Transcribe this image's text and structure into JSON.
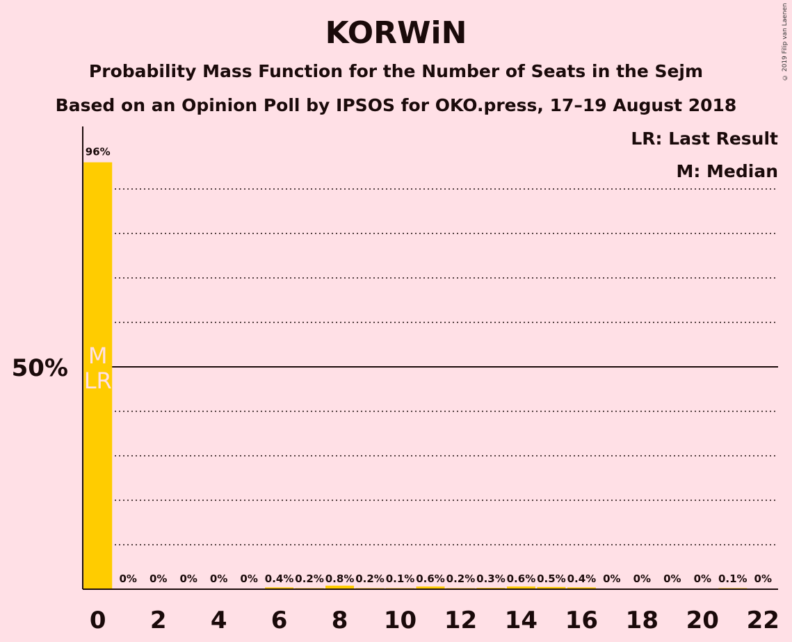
{
  "chart_data": {
    "type": "bar",
    "title": "KORWiN",
    "subtitle": "Probability Mass Function for the Number of Seats in the Sejm",
    "subtitle2": "Based on an Opinion Poll by IPSOS for OKO.press, 17–19 August 2018",
    "copyright": "© 2019 Filip van Laenen",
    "legend": {
      "last_result": "LR: Last Result",
      "median": "M: Median"
    },
    "categories": [
      0,
      1,
      2,
      3,
      4,
      5,
      6,
      7,
      8,
      9,
      10,
      11,
      12,
      13,
      14,
      15,
      16,
      17,
      18,
      19,
      20,
      21,
      22
    ],
    "values": [
      96,
      0,
      0,
      0,
      0,
      0,
      0.4,
      0.2,
      0.8,
      0.2,
      0.1,
      0.6,
      0.2,
      0.3,
      0.6,
      0.5,
      0.4,
      0,
      0,
      0,
      0,
      0.1,
      0
    ],
    "data_labels": [
      "96%",
      "0%",
      "0%",
      "0%",
      "0%",
      "0%",
      "0.4%",
      "0.2%",
      "0.8%",
      "0.2%",
      "0.1%",
      "0.6%",
      "0.2%",
      "0.3%",
      "0.6%",
      "0.5%",
      "0.4%",
      "0%",
      "0%",
      "0%",
      "0%",
      "0.1%",
      "0%"
    ],
    "x_tick_labels": [
      "0",
      "2",
      "4",
      "6",
      "8",
      "10",
      "12",
      "14",
      "16",
      "18",
      "20",
      "22"
    ],
    "x_ticks": [
      0,
      2,
      4,
      6,
      8,
      10,
      12,
      14,
      16,
      18,
      20,
      22
    ],
    "y_tick_label": "50%",
    "y_tick_value": 50,
    "gridlines": [
      10,
      20,
      30,
      40,
      60,
      70,
      80,
      90
    ],
    "ylim": [
      0,
      105
    ],
    "median_seat": 0,
    "last_result_seat": 0,
    "median_marker": "M",
    "last_result_marker": "LR",
    "bar_color": "#ffcc00",
    "marker_text_color": "#ffe0e6",
    "background_color": "#ffe0e6"
  }
}
